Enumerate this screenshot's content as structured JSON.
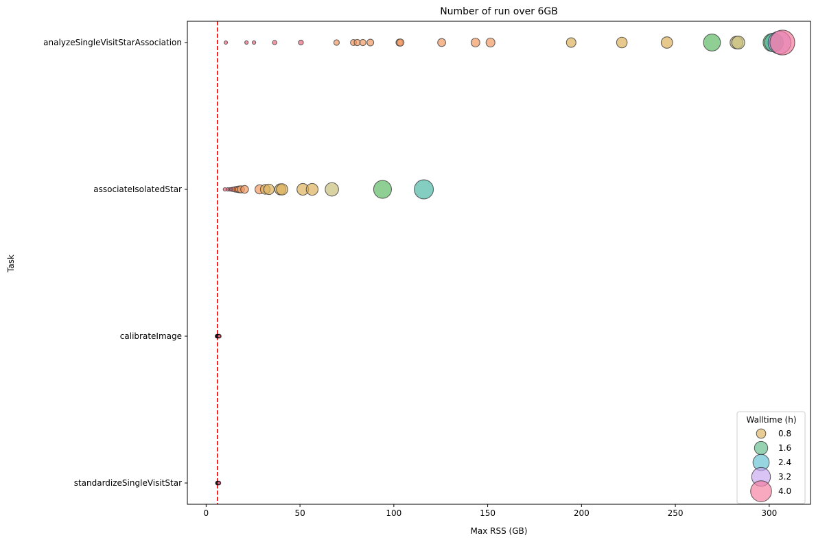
{
  "chart_data": {
    "type": "scatter",
    "title": "Number of run over 6GB",
    "xlabel": "Max RSS (GB)",
    "ylabel": "Task",
    "xlim": [
      -10,
      322
    ],
    "xticks": [
      0,
      50,
      100,
      150,
      200,
      250,
      300
    ],
    "categories": [
      "analyzeSingleVisitStarAssociation",
      "associateIsolatedStar",
      "calibrateImage",
      "standardizeSingleVisitStar"
    ],
    "threshold": {
      "x": 6,
      "color": "#e00000",
      "style": "dashed"
    },
    "size_variable": "Walltime (h)",
    "series": [
      {
        "task": "analyzeSingleVisitStarAssociation",
        "points": [
          {
            "x": 10.5,
            "walltime": 0.05
          },
          {
            "x": 21.5,
            "walltime": 0.08
          },
          {
            "x": 25.5,
            "walltime": 0.08
          },
          {
            "x": 36.5,
            "walltime": 0.12
          },
          {
            "x": 50.5,
            "walltime": 0.16
          },
          {
            "x": 69.5,
            "walltime": 0.2
          },
          {
            "x": 78.5,
            "walltime": 0.24
          },
          {
            "x": 80.5,
            "walltime": 0.26
          },
          {
            "x": 83.5,
            "walltime": 0.26
          },
          {
            "x": 87.5,
            "walltime": 0.3
          },
          {
            "x": 103.0,
            "walltime": 0.32
          },
          {
            "x": 103.5,
            "walltime": 0.34
          },
          {
            "x": 125.5,
            "walltime": 0.42
          },
          {
            "x": 143.5,
            "walltime": 0.5
          },
          {
            "x": 151.5,
            "walltime": 0.52
          },
          {
            "x": 194.5,
            "walltime": 0.6
          },
          {
            "x": 221.5,
            "walltime": 0.74
          },
          {
            "x": 245.5,
            "walltime": 0.86
          },
          {
            "x": 269.5,
            "walltime": 1.9
          },
          {
            "x": 282.5,
            "walltime": 1.05
          },
          {
            "x": 283.5,
            "walltime": 1.1
          },
          {
            "x": 301.5,
            "walltime": 2.1
          },
          {
            "x": 302.5,
            "walltime": 2.3
          },
          {
            "x": 305.5,
            "walltime": 3.4
          },
          {
            "x": 307.0,
            "walltime": 4.05
          }
        ]
      },
      {
        "task": "associateIsolatedStar",
        "points": [
          {
            "x": 10.0,
            "walltime": 0.05
          },
          {
            "x": 11.5,
            "walltime": 0.06
          },
          {
            "x": 12.5,
            "walltime": 0.07
          },
          {
            "x": 13.5,
            "walltime": 0.1
          },
          {
            "x": 14.5,
            "walltime": 0.14
          },
          {
            "x": 15.5,
            "walltime": 0.2
          },
          {
            "x": 16.5,
            "walltime": 0.24
          },
          {
            "x": 17.5,
            "walltime": 0.3
          },
          {
            "x": 18.5,
            "walltime": 0.34
          },
          {
            "x": 20.5,
            "walltime": 0.4
          },
          {
            "x": 28.5,
            "walltime": 0.56
          },
          {
            "x": 31.5,
            "walltime": 0.62
          },
          {
            "x": 33.5,
            "walltime": 0.72
          },
          {
            "x": 39.5,
            "walltime": 0.8
          },
          {
            "x": 40.5,
            "walltime": 0.84
          },
          {
            "x": 51.5,
            "walltime": 0.9
          },
          {
            "x": 56.5,
            "walltime": 0.92
          },
          {
            "x": 67.0,
            "walltime": 1.18
          },
          {
            "x": 94.0,
            "walltime": 2.1
          },
          {
            "x": 116.0,
            "walltime": 2.4
          }
        ]
      },
      {
        "task": "calibrateImage",
        "points": [
          {
            "x": 5.8,
            "walltime": 0.04
          },
          {
            "x": 6.2,
            "walltime": 0.04
          },
          {
            "x": 6.6,
            "walltime": 0.04
          },
          {
            "x": 7.0,
            "walltime": 0.04
          }
        ]
      },
      {
        "task": "standardizeSingleVisitStar",
        "points": [
          {
            "x": 6.0,
            "walltime": 0.03
          },
          {
            "x": 6.4,
            "walltime": 0.03
          },
          {
            "x": 6.8,
            "walltime": 0.03
          }
        ]
      }
    ],
    "colormap": [
      "#e9697f",
      "#f29a63",
      "#ddb05c",
      "#c9c07e",
      "#a8c46b",
      "#5fbb66",
      "#4fb8a6",
      "#66c3cf",
      "#78c0e6",
      "#c4a4f0",
      "#f4799c"
    ],
    "legend": {
      "title": "Walltime (h)",
      "position": "bottom-right",
      "entries": [
        {
          "label": "0.8",
          "value": 0.8,
          "color": "#ddb05c"
        },
        {
          "label": "1.6",
          "value": 1.6,
          "color": "#5fbb8a"
        },
        {
          "label": "2.4",
          "value": 2.4,
          "color": "#5fbfcf"
        },
        {
          "label": "3.2",
          "value": 3.2,
          "color": "#c4a4f0"
        },
        {
          "label": "4.0",
          "value": 4.0,
          "color": "#f4799c"
        }
      ]
    }
  }
}
